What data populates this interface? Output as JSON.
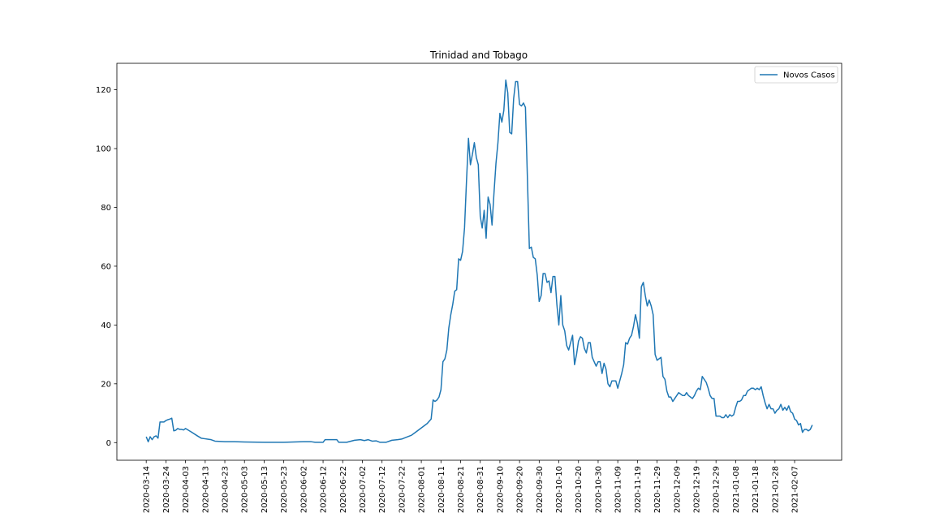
{
  "chart_data": {
    "type": "line",
    "title": "Trinidad and Tobago",
    "xlabel": "",
    "ylabel": "",
    "x_start": "2020-03-14",
    "x_tick_labels": [
      "2020-03-14",
      "2020-03-24",
      "2020-04-03",
      "2020-04-13",
      "2020-04-23",
      "2020-05-03",
      "2020-05-13",
      "2020-05-23",
      "2020-06-02",
      "2020-06-12",
      "2020-06-22",
      "2020-07-02",
      "2020-07-12",
      "2020-07-22",
      "2020-08-01",
      "2020-08-11",
      "2020-08-21",
      "2020-08-31",
      "2020-09-10",
      "2020-09-20",
      "2020-09-30",
      "2020-10-10",
      "2020-10-20",
      "2020-10-30",
      "2020-11-09",
      "2020-11-19",
      "2020-11-29",
      "2020-12-09",
      "2020-12-19",
      "2020-12-29",
      "2021-01-08",
      "2021-01-18",
      "2021-01-28",
      "2021-02-07"
    ],
    "y_ticks": [
      0,
      20,
      40,
      60,
      80,
      100,
      120
    ],
    "ylim": [
      -6,
      129
    ],
    "grid": false,
    "legend": {
      "position": "top-right"
    },
    "series": [
      {
        "name": "Novos Casos",
        "color": "#1f77b4",
        "points": [
          [
            "2020-03-14",
            2
          ],
          [
            "2020-03-15",
            0.3
          ],
          [
            "2020-03-16",
            2
          ],
          [
            "2020-03-17",
            1
          ],
          [
            "2020-03-18",
            2
          ],
          [
            "2020-03-19",
            2.3
          ],
          [
            "2020-03-20",
            1.5
          ],
          [
            "2020-03-21",
            7
          ],
          [
            "2020-03-22",
            7
          ],
          [
            "2020-03-23",
            7
          ],
          [
            "2020-03-24",
            7.5
          ],
          [
            "2020-03-25",
            7.8
          ],
          [
            "2020-03-26",
            8
          ],
          [
            "2020-03-27",
            8.3
          ],
          [
            "2020-03-28",
            4
          ],
          [
            "2020-03-29",
            4.2
          ],
          [
            "2020-03-30",
            4.8
          ],
          [
            "2020-03-31",
            4.5
          ],
          [
            "2020-04-01",
            4.5
          ],
          [
            "2020-04-02",
            4.3
          ],
          [
            "2020-04-03",
            4.8
          ],
          [
            "2020-04-06",
            3.6
          ],
          [
            "2020-04-09",
            2.3
          ],
          [
            "2020-04-11",
            1.5
          ],
          [
            "2020-04-13",
            1.3
          ],
          [
            "2020-04-16",
            1
          ],
          [
            "2020-04-18",
            0.5
          ],
          [
            "2020-04-23",
            0.3
          ],
          [
            "2020-04-28",
            0.3
          ],
          [
            "2020-05-03",
            0.2
          ],
          [
            "2020-05-13",
            0.1
          ],
          [
            "2020-05-23",
            0.1
          ],
          [
            "2020-06-02",
            0.3
          ],
          [
            "2020-06-06",
            0.3
          ],
          [
            "2020-06-08",
            0.1
          ],
          [
            "2020-06-12",
            0.1
          ],
          [
            "2020-06-13",
            1
          ],
          [
            "2020-06-19",
            1
          ],
          [
            "2020-06-20",
            0.1
          ],
          [
            "2020-06-24",
            0.1
          ],
          [
            "2020-06-28",
            0.8
          ],
          [
            "2020-07-01",
            1
          ],
          [
            "2020-07-03",
            0.7
          ],
          [
            "2020-07-05",
            1
          ],
          [
            "2020-07-07",
            0.5
          ],
          [
            "2020-07-09",
            0.6
          ],
          [
            "2020-07-11",
            0.1
          ],
          [
            "2020-07-14",
            0.1
          ],
          [
            "2020-07-17",
            0.8
          ],
          [
            "2020-07-20",
            1
          ],
          [
            "2020-07-22",
            1.2
          ],
          [
            "2020-07-25",
            2
          ],
          [
            "2020-07-27",
            2.5
          ],
          [
            "2020-07-29",
            3.5
          ],
          [
            "2020-07-31",
            4.5
          ],
          [
            "2020-08-02",
            5.5
          ],
          [
            "2020-08-04",
            6.5
          ],
          [
            "2020-08-06",
            8
          ],
          [
            "2020-08-07",
            14.5
          ],
          [
            "2020-08-08",
            14
          ],
          [
            "2020-08-09",
            14.5
          ],
          [
            "2020-08-10",
            15.5
          ],
          [
            "2020-08-11",
            18
          ],
          [
            "2020-08-12",
            27.5
          ],
          [
            "2020-08-13",
            28.5
          ],
          [
            "2020-08-14",
            31.5
          ],
          [
            "2020-08-15",
            39
          ],
          [
            "2020-08-16",
            43.5
          ],
          [
            "2020-08-17",
            47
          ],
          [
            "2020-08-18",
            51.5
          ],
          [
            "2020-08-19",
            52
          ],
          [
            "2020-08-20",
            62.5
          ],
          [
            "2020-08-21",
            62
          ],
          [
            "2020-08-22",
            65
          ],
          [
            "2020-08-23",
            73
          ],
          [
            "2020-08-24",
            89
          ],
          [
            "2020-08-25",
            103.5
          ],
          [
            "2020-08-26",
            94.5
          ],
          [
            "2020-08-27",
            98
          ],
          [
            "2020-08-28",
            102
          ],
          [
            "2020-08-29",
            97
          ],
          [
            "2020-08-30",
            94.5
          ],
          [
            "2020-08-31",
            77
          ],
          [
            "2020-09-01",
            73
          ],
          [
            "2020-09-02",
            79
          ],
          [
            "2020-09-03",
            69.5
          ],
          [
            "2020-09-04",
            83.5
          ],
          [
            "2020-09-05",
            81
          ],
          [
            "2020-09-06",
            74
          ],
          [
            "2020-09-07",
            85
          ],
          [
            "2020-09-08",
            95
          ],
          [
            "2020-09-09",
            102
          ],
          [
            "2020-09-10",
            112
          ],
          [
            "2020-09-11",
            109
          ],
          [
            "2020-09-12",
            113
          ],
          [
            "2020-09-13",
            123.3
          ],
          [
            "2020-09-14",
            119
          ],
          [
            "2020-09-15",
            105.5
          ],
          [
            "2020-09-16",
            105
          ],
          [
            "2020-09-17",
            117
          ],
          [
            "2020-09-18",
            122.8
          ],
          [
            "2020-09-19",
            122.8
          ],
          [
            "2020-09-20",
            115
          ],
          [
            "2020-09-21",
            114.5
          ],
          [
            "2020-09-22",
            115.5
          ],
          [
            "2020-09-23",
            114
          ],
          [
            "2020-09-24",
            90
          ],
          [
            "2020-09-25",
            66
          ],
          [
            "2020-09-26",
            66.5
          ],
          [
            "2020-09-27",
            63
          ],
          [
            "2020-09-28",
            62.5
          ],
          [
            "2020-09-29",
            57
          ],
          [
            "2020-09-30",
            48
          ],
          [
            "2020-10-01",
            50
          ],
          [
            "2020-10-02",
            57.5
          ],
          [
            "2020-10-03",
            57.5
          ],
          [
            "2020-10-04",
            54.5
          ],
          [
            "2020-10-05",
            55
          ],
          [
            "2020-10-06",
            51
          ],
          [
            "2020-10-07",
            56.5
          ],
          [
            "2020-10-08",
            56.5
          ],
          [
            "2020-10-09",
            47
          ],
          [
            "2020-10-10",
            40
          ],
          [
            "2020-10-11",
            50
          ],
          [
            "2020-10-12",
            40
          ],
          [
            "2020-10-13",
            38
          ],
          [
            "2020-10-14",
            33
          ],
          [
            "2020-10-15",
            31.5
          ],
          [
            "2020-10-16",
            34
          ],
          [
            "2020-10-17",
            36.5
          ],
          [
            "2020-10-18",
            26.5
          ],
          [
            "2020-10-19",
            30
          ],
          [
            "2020-10-20",
            34.5
          ],
          [
            "2020-10-21",
            36
          ],
          [
            "2020-10-22",
            35.5
          ],
          [
            "2020-10-23",
            32
          ],
          [
            "2020-10-24",
            30.5
          ],
          [
            "2020-10-25",
            34
          ],
          [
            "2020-10-26",
            34
          ],
          [
            "2020-10-27",
            29
          ],
          [
            "2020-10-28",
            27.5
          ],
          [
            "2020-10-29",
            26
          ],
          [
            "2020-10-30",
            27.5
          ],
          [
            "2020-10-31",
            27.5
          ],
          [
            "2020-11-01",
            23.5
          ],
          [
            "2020-11-02",
            27
          ],
          [
            "2020-11-03",
            25
          ],
          [
            "2020-11-04",
            20
          ],
          [
            "2020-11-05",
            19
          ],
          [
            "2020-11-06",
            21
          ],
          [
            "2020-11-07",
            21
          ],
          [
            "2020-11-08",
            21
          ],
          [
            "2020-11-09",
            18.5
          ],
          [
            "2020-11-10",
            21
          ],
          [
            "2020-11-11",
            23.5
          ],
          [
            "2020-11-12",
            26.5
          ],
          [
            "2020-11-13",
            34
          ],
          [
            "2020-11-14",
            33.5
          ],
          [
            "2020-11-15",
            35.5
          ],
          [
            "2020-11-16",
            36.5
          ],
          [
            "2020-11-17",
            39.5
          ],
          [
            "2020-11-18",
            43.5
          ],
          [
            "2020-11-19",
            40.5
          ],
          [
            "2020-11-20",
            35.5
          ],
          [
            "2020-11-21",
            53
          ],
          [
            "2020-11-22",
            54.5
          ],
          [
            "2020-11-23",
            50
          ],
          [
            "2020-11-24",
            46.5
          ],
          [
            "2020-11-25",
            48.5
          ],
          [
            "2020-11-26",
            46.5
          ],
          [
            "2020-11-27",
            43.5
          ],
          [
            "2020-11-28",
            30
          ],
          [
            "2020-11-29",
            28
          ],
          [
            "2020-11-30",
            28.5
          ],
          [
            "2020-12-01",
            29
          ],
          [
            "2020-12-02",
            22.5
          ],
          [
            "2020-12-03",
            21.5
          ],
          [
            "2020-12-04",
            17.5
          ],
          [
            "2020-12-05",
            15.5
          ],
          [
            "2020-12-06",
            15.5
          ],
          [
            "2020-12-07",
            14
          ],
          [
            "2020-12-08",
            15
          ],
          [
            "2020-12-09",
            16
          ],
          [
            "2020-12-10",
            17
          ],
          [
            "2020-12-11",
            16.5
          ],
          [
            "2020-12-12",
            16
          ],
          [
            "2020-12-13",
            16
          ],
          [
            "2020-12-14",
            17
          ],
          [
            "2020-12-15",
            16
          ],
          [
            "2020-12-16",
            15.5
          ],
          [
            "2020-12-17",
            15
          ],
          [
            "2020-12-18",
            16
          ],
          [
            "2020-12-19",
            17.5
          ],
          [
            "2020-12-20",
            18.5
          ],
          [
            "2020-12-21",
            18
          ],
          [
            "2020-12-22",
            22.5
          ],
          [
            "2020-12-23",
            21.5
          ],
          [
            "2020-12-24",
            20.5
          ],
          [
            "2020-12-25",
            18.5
          ],
          [
            "2020-12-26",
            16
          ],
          [
            "2020-12-27",
            15
          ],
          [
            "2020-12-28",
            15
          ],
          [
            "2020-12-29",
            9
          ],
          [
            "2020-12-30",
            9
          ],
          [
            "2020-12-31",
            9
          ],
          [
            "2021-01-01",
            8.5
          ],
          [
            "2021-01-02",
            8.5
          ],
          [
            "2021-01-03",
            9.5
          ],
          [
            "2021-01-04",
            8.5
          ],
          [
            "2021-01-05",
            9.5
          ],
          [
            "2021-01-06",
            9
          ],
          [
            "2021-01-07",
            9.5
          ],
          [
            "2021-01-08",
            12
          ],
          [
            "2021-01-09",
            14
          ],
          [
            "2021-01-10",
            14
          ],
          [
            "2021-01-11",
            14.5
          ],
          [
            "2021-01-12",
            16
          ],
          [
            "2021-01-13",
            16
          ],
          [
            "2021-01-14",
            17.5
          ],
          [
            "2021-01-15",
            18
          ],
          [
            "2021-01-16",
            18.5
          ],
          [
            "2021-01-17",
            18.5
          ],
          [
            "2021-01-18",
            18
          ],
          [
            "2021-01-19",
            18.5
          ],
          [
            "2021-01-20",
            18
          ],
          [
            "2021-01-21",
            19
          ],
          [
            "2021-01-22",
            16
          ],
          [
            "2021-01-23",
            13.5
          ],
          [
            "2021-01-24",
            11.5
          ],
          [
            "2021-01-25",
            13
          ],
          [
            "2021-01-26",
            11.5
          ],
          [
            "2021-01-27",
            11.5
          ],
          [
            "2021-01-28",
            10
          ],
          [
            "2021-01-29",
            11
          ],
          [
            "2021-01-30",
            11.5
          ],
          [
            "2021-01-31",
            13
          ],
          [
            "2021-02-01",
            11
          ],
          [
            "2021-02-02",
            12
          ],
          [
            "2021-02-03",
            11
          ],
          [
            "2021-02-04",
            12.5
          ],
          [
            "2021-02-05",
            10.5
          ],
          [
            "2021-02-06",
            10
          ],
          [
            "2021-02-07",
            8
          ],
          [
            "2021-02-08",
            7.5
          ],
          [
            "2021-02-09",
            6
          ],
          [
            "2021-02-10",
            6.5
          ],
          [
            "2021-02-11",
            3.5
          ],
          [
            "2021-02-12",
            4.5
          ],
          [
            "2021-02-13",
            4.5
          ],
          [
            "2021-02-14",
            4
          ],
          [
            "2021-02-15",
            4.5
          ],
          [
            "2021-02-16",
            6
          ]
        ]
      }
    ]
  }
}
